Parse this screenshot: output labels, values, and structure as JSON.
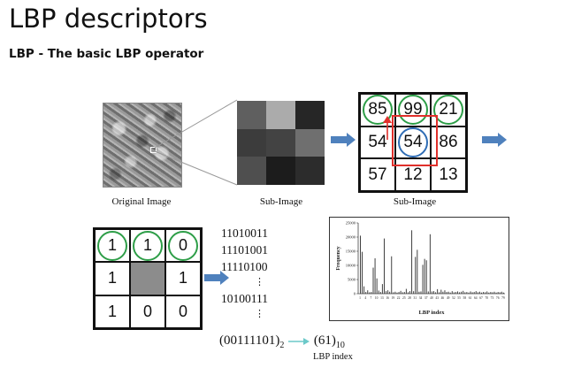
{
  "slide": {
    "title": "LBP descriptors",
    "subtitle": "LBP - The basic LBP operator"
  },
  "captions": {
    "original_image": "Original Image",
    "sub_image_1": "Sub-Image",
    "sub_image_2": "Sub-Image",
    "lbp_index": "LBP index"
  },
  "sub_image_pixels": [
    "#5f5f5f",
    "#ababab",
    "#262626",
    "#3c3c3c",
    "#434343",
    "#6f6f6f",
    "#4f4f4f",
    "#1c1c1c",
    "#2c2c2c"
  ],
  "values_grid": {
    "cells": [
      "85",
      "99",
      "21",
      "54",
      "54",
      "86",
      "57",
      "12",
      "13"
    ],
    "green_circles": [
      0,
      1,
      2
    ],
    "blue_circle": 4
  },
  "binary_grid": {
    "cells": [
      "1",
      "1",
      "0",
      "1",
      "",
      "1",
      "1",
      "0",
      "0"
    ],
    "green_circles": [
      0,
      1,
      2
    ],
    "gray_center": 4
  },
  "binary_codes": {
    "lines": [
      "11010011",
      "11101001",
      "11110100",
      "10100111"
    ],
    "dots": "⋮"
  },
  "formula": {
    "binary": "(00111101)",
    "binary_base": "2",
    "decimal": "(61)",
    "decimal_base": "10"
  },
  "colors": {
    "green_circle": "#2e9e48",
    "blue_circle": "#2f6db5",
    "red_box": "#e0302b",
    "arrow_blue": "#4f81bd",
    "teal_arrow": "#6cc9c9"
  },
  "chart_data": {
    "type": "bar",
    "ylabel": "Frequency",
    "xlabel": "LBP index",
    "ylim": [
      0,
      25000
    ],
    "y_ticks": [
      "0",
      "5000",
      "10000",
      "15000",
      "20000",
      "25000"
    ],
    "x_tick_labels": [
      "1",
      "4",
      "7",
      "10",
      "13",
      "16",
      "19",
      "22",
      "25",
      "28",
      "31",
      "34",
      "37",
      "40",
      "43",
      "46",
      "49",
      "52",
      "55",
      "58",
      "61",
      "64",
      "67",
      "70",
      "73",
      "76",
      "79"
    ],
    "values": [
      20500,
      14800,
      2600,
      600,
      1200,
      500,
      600,
      9200,
      12500,
      5400,
      1100,
      600,
      3400,
      19500,
      900,
      1200,
      700,
      13200,
      500,
      700,
      400,
      600,
      1000,
      500,
      600,
      1700,
      500,
      900,
      22400,
      900,
      13000,
      15500,
      700,
      800,
      10200,
      12300,
      11800,
      800,
      21000,
      800,
      900,
      500,
      1600,
      500,
      1400,
      700,
      1200,
      600,
      700,
      400,
      900,
      500,
      600,
      800,
      500,
      700,
      1000,
      500,
      600,
      400,
      800,
      500,
      600,
      900,
      500,
      700,
      400,
      600,
      500,
      800,
      400,
      600,
      500,
      700,
      400,
      600,
      500,
      700,
      400
    ]
  }
}
